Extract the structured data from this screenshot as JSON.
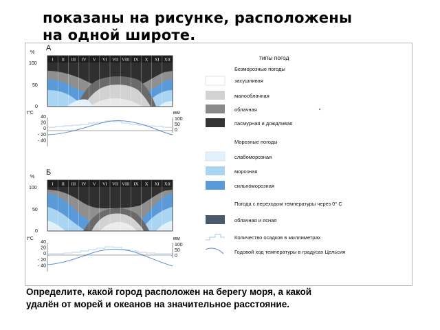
{
  "slide": {
    "title_lines": [
      "",
      "показаны на рисунке, расположены",
      "на одной широте."
    ],
    "question_lines": [
      "Определите, какой  город расположен на берегу моря, а какой",
      "удалён от морей и океанов на значительное расстояние."
    ]
  },
  "figure": {
    "panel_a_label": "А",
    "panel_b_label": "Б",
    "axis_percent": "%",
    "percent_ticks": [
      "100",
      "50",
      "0"
    ],
    "temp_unit": "t°C",
    "precip_unit": "мм",
    "temp_ticks": [
      "40",
      "20",
      "0",
      "- 20",
      "- 40"
    ],
    "precip_ticks": [
      "100",
      "50",
      "0"
    ],
    "months": [
      "I",
      "II",
      "III",
      "IV",
      "V",
      "VI",
      "VII",
      "VIII",
      "IX",
      "X",
      "XI",
      "XII"
    ]
  },
  "legend": {
    "heading": "типы погод",
    "non_freezing_heading": "Безморозные погоды",
    "non_freezing_items": [
      {
        "label": "засушливая",
        "color": "#ffffff"
      },
      {
        "label": "малооблачная",
        "color": "#d2d2d2"
      },
      {
        "label": "облачная",
        "color": "#8a8a8a"
      },
      {
        "label": "пасмурная и дождливая",
        "color": "#333333"
      }
    ],
    "freezing_heading": "Морозные погоды",
    "freezing_items": [
      {
        "label": "слабоморозная",
        "color": "#e3f1fb"
      },
      {
        "label": "морозная",
        "color": "#a9d4f2"
      },
      {
        "label": "сильноморозная",
        "color": "#5b9ad8"
      }
    ],
    "transition_heading": "Погода с переходом температуры через 0° С",
    "transition_items": [
      {
        "label": "облачная и ясная",
        "color": "#4a5a6a"
      }
    ],
    "precip_label": "Количество осадков в миллиметрах",
    "temp_label": "Годовой ход температуры в градусах Цельсия"
  }
}
